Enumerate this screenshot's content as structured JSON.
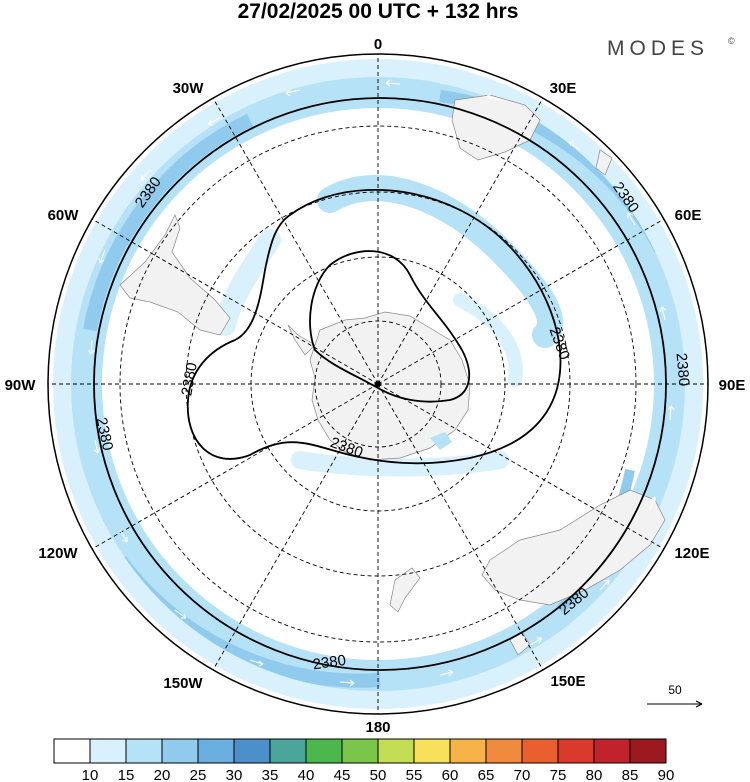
{
  "title": "27/02/2025  00 UTC  + 132 hrs",
  "brand": {
    "name": "MODES",
    "mark": "©"
  },
  "longitudes": [
    {
      "id": "lon-0",
      "label": "0"
    },
    {
      "id": "lon-30e",
      "label": "30E"
    },
    {
      "id": "lon-60e",
      "label": "60E"
    },
    {
      "id": "lon-90e",
      "label": "90E"
    },
    {
      "id": "lon-120e",
      "label": "120E"
    },
    {
      "id": "lon-150e",
      "label": "150E"
    },
    {
      "id": "lon-180",
      "label": "180"
    },
    {
      "id": "lon-150w",
      "label": "150W"
    },
    {
      "id": "lon-120w",
      "label": "120W"
    },
    {
      "id": "lon-90w",
      "label": "90W"
    },
    {
      "id": "lon-60w",
      "label": "60W"
    },
    {
      "id": "lon-30w",
      "label": "30W"
    }
  ],
  "contour_labels": [
    "2380",
    "2380",
    "2380",
    "2380",
    "2380",
    "2380",
    "2380",
    "2380",
    "2380"
  ],
  "reference_vector": {
    "value": "50"
  },
  "colorbar": {
    "ticks": [
      "10",
      "15",
      "20",
      "25",
      "30",
      "35",
      "40",
      "45",
      "50",
      "55",
      "60",
      "65",
      "70",
      "75",
      "80",
      "85",
      "90"
    ],
    "colors": [
      "#ffffff",
      "#d8f1fc",
      "#b5e2f7",
      "#90cbee",
      "#6aaedf",
      "#4d8fc9",
      "#4aa59a",
      "#4bb74d",
      "#79c64b",
      "#c3dd55",
      "#f7e05a",
      "#f6b349",
      "#f08a3c",
      "#e9602e",
      "#d93a2b",
      "#c1232a",
      "#9c1a1f"
    ]
  },
  "map_colors": {
    "land": "#f2f2f2",
    "wind_light": "#d8f1fc",
    "wind_medium": "#b5e2f7",
    "wind_strong": "#90cbee",
    "ocean": "#ffffff"
  }
}
